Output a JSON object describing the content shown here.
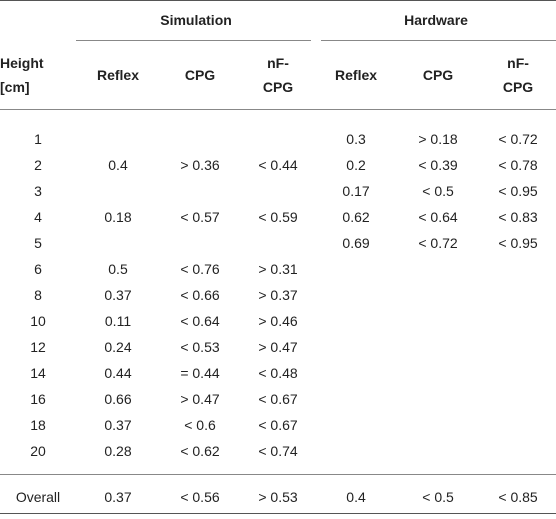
{
  "table": {
    "groups": {
      "simulation": "Simulation",
      "hardware": "Hardware"
    },
    "headers": {
      "height": [
        "Height",
        "[cm]"
      ],
      "sim_reflex": "Reflex",
      "sim_cpg": "CPG",
      "sim_nfcpg": [
        "nF-",
        "CPG"
      ],
      "hw_reflex": "Reflex",
      "hw_cpg": "CPG",
      "hw_nfcpg": [
        "nF-",
        "CPG"
      ]
    },
    "rows": [
      {
        "height": "1",
        "sim_reflex": "",
        "sim_cpg": "",
        "sim_nfcpg": "",
        "hw_reflex": "0.3",
        "hw_cpg": "> 0.18",
        "hw_nfcpg": "< 0.72"
      },
      {
        "height": "2",
        "sim_reflex": "0.4",
        "sim_cpg": "> 0.36",
        "sim_nfcpg": "< 0.44",
        "hw_reflex": "0.2",
        "hw_cpg": "< 0.39",
        "hw_nfcpg": "< 0.78"
      },
      {
        "height": "3",
        "sim_reflex": "",
        "sim_cpg": "",
        "sim_nfcpg": "",
        "hw_reflex": "0.17",
        "hw_cpg": "< 0.5",
        "hw_nfcpg": "< 0.95"
      },
      {
        "height": "4",
        "sim_reflex": "0.18",
        "sim_cpg": "< 0.57",
        "sim_nfcpg": "< 0.59",
        "hw_reflex": "0.62",
        "hw_cpg": "< 0.64",
        "hw_nfcpg": "< 0.83"
      },
      {
        "height": "5",
        "sim_reflex": "",
        "sim_cpg": "",
        "sim_nfcpg": "",
        "hw_reflex": "0.69",
        "hw_cpg": "< 0.72",
        "hw_nfcpg": "< 0.95"
      },
      {
        "height": "6",
        "sim_reflex": "0.5",
        "sim_cpg": "< 0.76",
        "sim_nfcpg": "> 0.31",
        "hw_reflex": "",
        "hw_cpg": "",
        "hw_nfcpg": ""
      },
      {
        "height": "8",
        "sim_reflex": "0.37",
        "sim_cpg": "< 0.66",
        "sim_nfcpg": "> 0.37",
        "hw_reflex": "",
        "hw_cpg": "",
        "hw_nfcpg": ""
      },
      {
        "height": "10",
        "sim_reflex": "0.11",
        "sim_cpg": "< 0.64",
        "sim_nfcpg": "> 0.46",
        "hw_reflex": "",
        "hw_cpg": "",
        "hw_nfcpg": ""
      },
      {
        "height": "12",
        "sim_reflex": "0.24",
        "sim_cpg": "< 0.53",
        "sim_nfcpg": "> 0.47",
        "hw_reflex": "",
        "hw_cpg": "",
        "hw_nfcpg": ""
      },
      {
        "height": "14",
        "sim_reflex": "0.44",
        "sim_cpg": "= 0.44",
        "sim_nfcpg": "< 0.48",
        "hw_reflex": "",
        "hw_cpg": "",
        "hw_nfcpg": ""
      },
      {
        "height": "16",
        "sim_reflex": "0.66",
        "sim_cpg": "> 0.47",
        "sim_nfcpg": "< 0.67",
        "hw_reflex": "",
        "hw_cpg": "",
        "hw_nfcpg": ""
      },
      {
        "height": "18",
        "sim_reflex": "0.37",
        "sim_cpg": "< 0.6",
        "sim_nfcpg": "< 0.67",
        "hw_reflex": "",
        "hw_cpg": "",
        "hw_nfcpg": ""
      },
      {
        "height": "20",
        "sim_reflex": "0.28",
        "sim_cpg": "< 0.62",
        "sim_nfcpg": "< 0.74",
        "hw_reflex": "",
        "hw_cpg": "",
        "hw_nfcpg": ""
      }
    ],
    "overall": {
      "height": "Overall",
      "sim_reflex": "0.37",
      "sim_cpg": "< 0.56",
      "sim_nfcpg": "> 0.53",
      "hw_reflex": "0.4",
      "hw_cpg": "< 0.5",
      "hw_nfcpg": "< 0.85"
    }
  }
}
